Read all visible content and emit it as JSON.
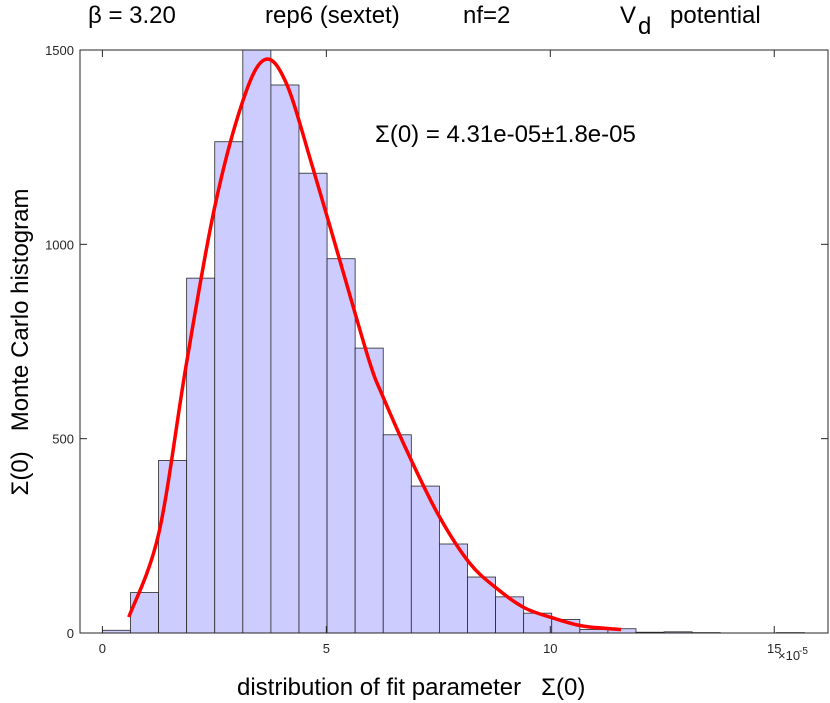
{
  "chart_data": {
    "type": "bar",
    "title": {
      "beta": "β = 3.20",
      "rep": "rep6 (sextet)",
      "nf": "nf=2",
      "potential_v": "V",
      "potential_sub": "d",
      "potential_word": "potential"
    },
    "annotation": "Σ(0) = 4.31e-05±1.8e-05",
    "xlabel": "distribution of fit parameter   Σ(0)",
    "ylabel": "Σ(0)   Monte Carlo histogram",
    "x_exponent": "×10",
    "x_exponent_power": "-5",
    "xlim": [
      -0.5,
      16.2
    ],
    "ylim": [
      0,
      1500
    ],
    "xticks": [
      0,
      5,
      10,
      15
    ],
    "xtick_labels": [
      "0",
      "5",
      "10",
      "15"
    ],
    "yticks": [
      0,
      500,
      1000,
      1500
    ],
    "ytick_labels": [
      "0",
      "500",
      "1000",
      "1500"
    ],
    "bin_start": 0,
    "bin_width": 0.627,
    "values": [
      7,
      104,
      444,
      913,
      1264,
      1500,
      1410,
      1183,
      963,
      733,
      510,
      378,
      229,
      144,
      93,
      51,
      35,
      9,
      11,
      2,
      3,
      1,
      0,
      0,
      1
    ],
    "bar_color": "#ccccff",
    "fit_curve": {
      "color": "#ff0000",
      "x": [
        0.59,
        1.26,
        1.87,
        2.5,
        3.13,
        3.62,
        4.1,
        4.69,
        5.36,
        5.96,
        6.26,
        6.89,
        7.52,
        8.19,
        8.79,
        9.42,
        10.05,
        10.72,
        11.58
      ],
      "y": [
        41,
        257,
        689,
        1092,
        1367,
        1475,
        1416,
        1200,
        935,
        699,
        609,
        446,
        300,
        181,
        116,
        65,
        39,
        18,
        9
      ]
    },
    "grid": false,
    "legend": "none"
  }
}
